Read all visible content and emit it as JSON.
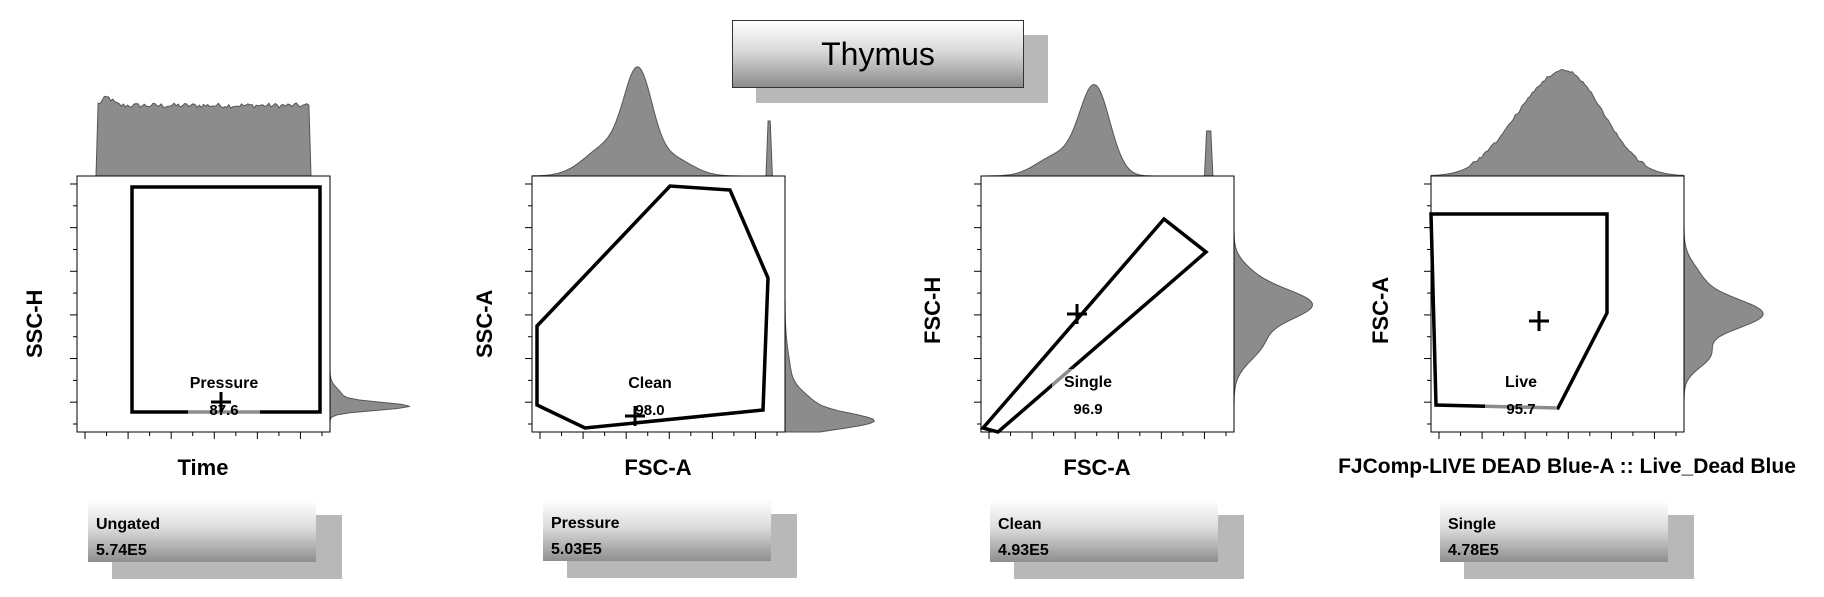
{
  "title": "Thymus",
  "colors": {
    "dots": "#1a1aff",
    "histogram": "#8c8c8c",
    "gate": "#000000",
    "contour": "#444444"
  },
  "chart_data": [
    {
      "type": "scatter",
      "xlabel": "Time",
      "ylabel": "SSC-H",
      "gate": {
        "name": "Pressure",
        "percent": "87.6"
      },
      "info": {
        "population": "Ungated",
        "count": "5.74E5"
      },
      "marginals": {
        "top": "histogram",
        "right": "histogram"
      }
    },
    {
      "type": "scatter",
      "xlabel": "FSC-A",
      "ylabel": "SSC-A",
      "gate": {
        "name": "Clean",
        "percent": "98.0"
      },
      "info": {
        "population": "Pressure",
        "count": "5.03E5"
      },
      "marginals": {
        "top": "histogram",
        "right": "histogram"
      }
    },
    {
      "type": "scatter",
      "xlabel": "FSC-A",
      "ylabel": "FSC-H",
      "gate": {
        "name": "Single",
        "percent": "96.9"
      },
      "info": {
        "population": "Clean",
        "count": "4.93E5"
      },
      "marginals": {
        "top": "histogram",
        "right": "histogram"
      }
    },
    {
      "type": "scatter",
      "xlabel": "FJComp-LIVE DEAD Blue-A :: Live_Dead Blue",
      "ylabel": "FSC-A",
      "gate": {
        "name": "Live",
        "percent": "95.7"
      },
      "info": {
        "population": "Single",
        "count": "4.78E5"
      },
      "marginals": {
        "top": "histogram",
        "right": "histogram"
      }
    }
  ]
}
